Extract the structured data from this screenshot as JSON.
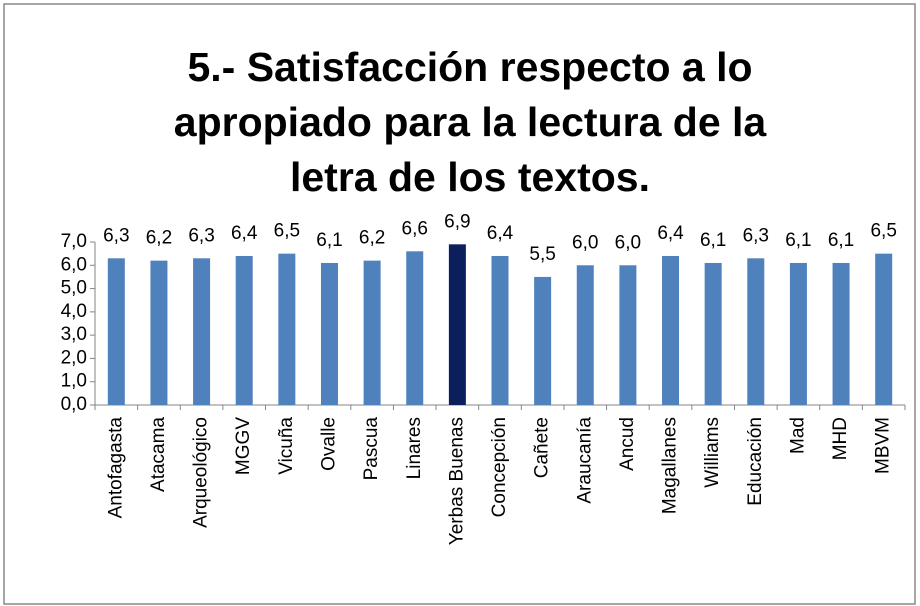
{
  "chart_data": {
    "type": "bar",
    "title": "5.- Satisfacción respecto a lo apropiado para la lectura de la letra de los textos.",
    "categories": [
      "Antofagasta",
      "Atacama",
      "Arqueológico",
      "MGGV",
      "Vicuña",
      "Ovalle",
      "Pascua",
      "Linares",
      "Yerbas Buenas",
      "Concepción",
      "Cañete",
      "Araucanía",
      "Ancud",
      "Magallanes",
      "Williams",
      "Educación",
      "Mad",
      "MHD",
      "MBVM"
    ],
    "values": [
      6.3,
      6.2,
      6.3,
      6.4,
      6.5,
      6.1,
      6.2,
      6.6,
      6.9,
      6.4,
      5.5,
      6.0,
      6.0,
      6.4,
      6.1,
      6.3,
      6.1,
      6.1,
      6.5
    ],
    "value_labels": [
      "6,3",
      "6,2",
      "6,3",
      "6,4",
      "6,5",
      "6,1",
      "6,2",
      "6,6",
      "6,9",
      "6,4",
      "5,5",
      "6,0",
      "6,0",
      "6,4",
      "6,1",
      "6,3",
      "6,1",
      "6,1",
      "6,5"
    ],
    "colors": [
      "#4f81bd",
      "#4f81bd",
      "#4f81bd",
      "#4f81bd",
      "#4f81bd",
      "#4f81bd",
      "#4f81bd",
      "#4f81bd",
      "#0a1f5c",
      "#4f81bd",
      "#4f81bd",
      "#4f81bd",
      "#4f81bd",
      "#4f81bd",
      "#4f81bd",
      "#4f81bd",
      "#4f81bd",
      "#4f81bd",
      "#4f81bd"
    ],
    "ylim": [
      0,
      7
    ],
    "yticks": [
      {
        "value": 0,
        "label": "0,0"
      },
      {
        "value": 1,
        "label": "1,0"
      },
      {
        "value": 2,
        "label": "2,0"
      },
      {
        "value": 3,
        "label": "3,0"
      },
      {
        "value": 4,
        "label": "4,0"
      },
      {
        "value": 5,
        "label": "5,0"
      },
      {
        "value": 6,
        "label": "6,0"
      },
      {
        "value": 7,
        "label": "7,0"
      }
    ],
    "grid": false
  }
}
